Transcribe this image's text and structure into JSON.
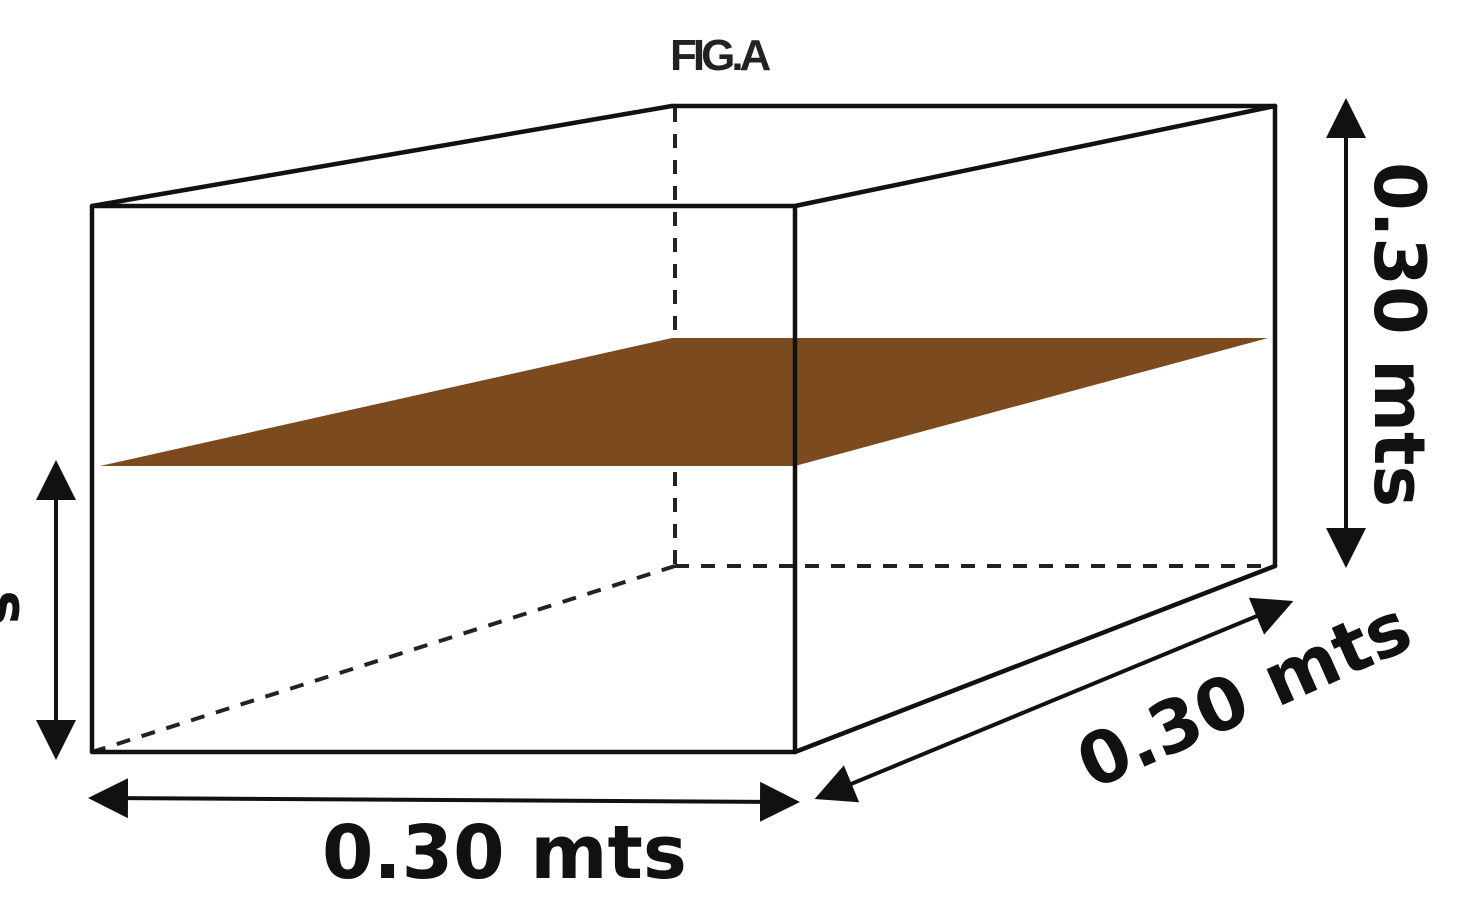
{
  "figure": {
    "title": "FIG.A"
  },
  "dimensions": {
    "width_label": "0.30 mts",
    "depth_label": "0.30 mts",
    "height_label": "0.30 mts",
    "left_label_fragment": "s"
  },
  "colors": {
    "edge": "#111111",
    "plane_fill": "#7b4a1e",
    "background": "#ffffff"
  }
}
